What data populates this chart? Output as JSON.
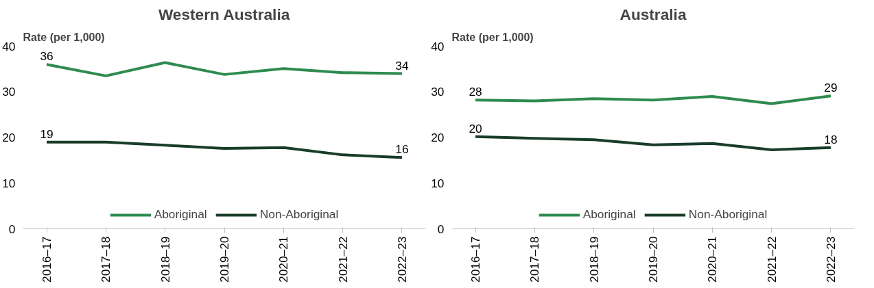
{
  "chart_data": [
    {
      "type": "line",
      "title": "Western Australia",
      "ylabel": "Rate (per 1,000)",
      "categories": [
        "2016–17",
        "2017–18",
        "2018–19",
        "2019–20",
        "2020–21",
        "2021–22",
        "2022–23"
      ],
      "ylim": [
        0,
        40
      ],
      "yticks": [
        0,
        10,
        20,
        30,
        40
      ],
      "grid": false,
      "legend": "bottom",
      "series": [
        {
          "name": "Aboriginal",
          "color": "#2e8b4f",
          "values": [
            36,
            33.5,
            36.4,
            33.8,
            35.1,
            34.2,
            34
          ],
          "value_labels": [
            "36",
            null,
            null,
            null,
            null,
            null,
            "34"
          ]
        },
        {
          "name": "Non-Aboriginal",
          "color": "#183d2a",
          "values": [
            19,
            19,
            18.3,
            17.6,
            17.8,
            16.2,
            15.6
          ],
          "value_labels": [
            "19",
            null,
            null,
            null,
            null,
            null,
            "16"
          ]
        }
      ]
    },
    {
      "type": "line",
      "title": "Australia",
      "ylabel": "Rate (per 1,000)",
      "categories": [
        "2016–17",
        "2017–18",
        "2018–19",
        "2019–20",
        "2020–21",
        "2021–22",
        "2022–23"
      ],
      "ylim": [
        0,
        40
      ],
      "yticks": [
        0,
        10,
        20,
        30,
        40
      ],
      "grid": false,
      "legend": "bottom",
      "series": [
        {
          "name": "Aboriginal",
          "color": "#2e8b4f",
          "values": [
            28.2,
            28,
            28.5,
            28.2,
            29,
            27.4,
            29.1
          ],
          "value_labels": [
            "28",
            null,
            null,
            null,
            null,
            null,
            "29"
          ]
        },
        {
          "name": "Non-Aboriginal",
          "color": "#183d2a",
          "values": [
            20.2,
            19.8,
            19.5,
            18.4,
            18.7,
            17.3,
            17.8
          ],
          "value_labels": [
            "20",
            null,
            null,
            null,
            null,
            null,
            "18"
          ]
        }
      ]
    }
  ]
}
